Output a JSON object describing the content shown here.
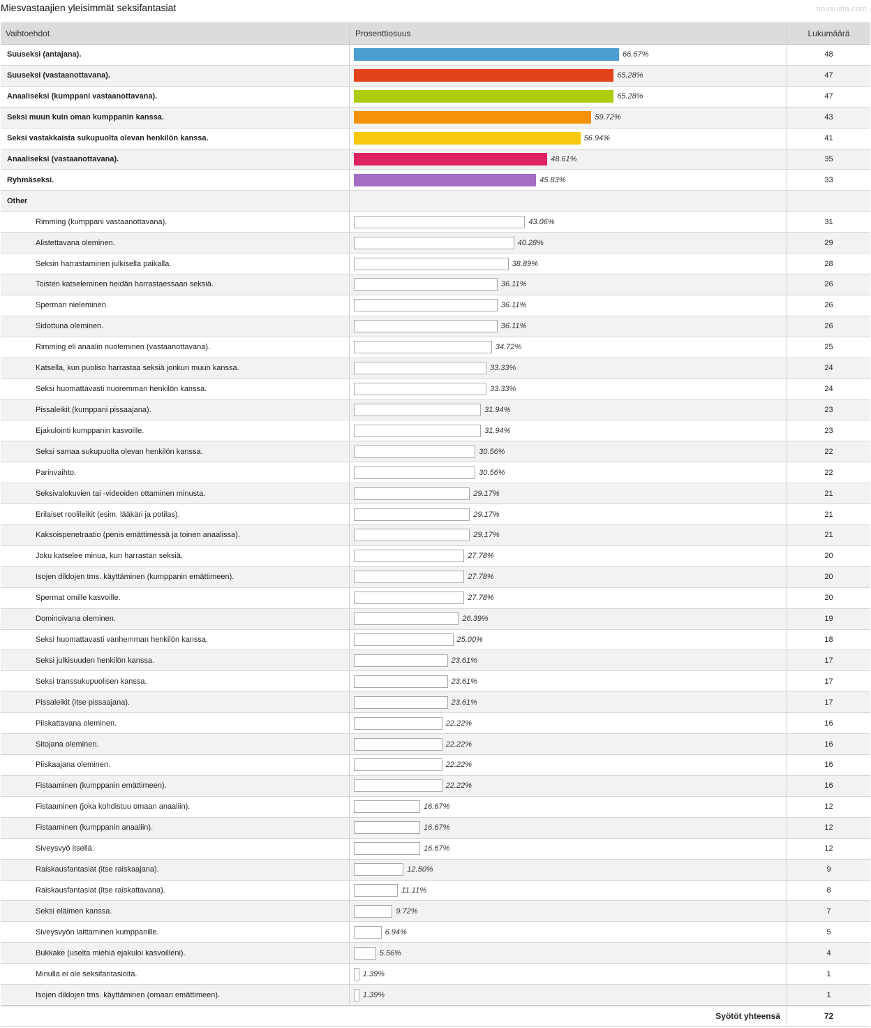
{
  "title": "Miesvastaajien yleisimmät seksifantasiat",
  "brand": "housuitta.com",
  "header": {
    "col1": "Vaihtoehdot",
    "col2": "Prosenttiosuus",
    "col3": "Lukumäärä"
  },
  "chart_data": {
    "type": "bar",
    "orientation": "horizontal",
    "title": "Miesvastaajien yleisimmät seksifantasiat",
    "xlabel": "Prosenttiosuus",
    "ylabel": "Vaihtoehdot",
    "xlim": [
      0,
      100
    ],
    "rows": [
      {
        "label": "Suuseksi (antajana).",
        "percent": "66.67%",
        "value": 66.67,
        "count": "48",
        "color": "#4a9fd0",
        "kind": "main"
      },
      {
        "label": "Suuseksi (vastaanottavana).",
        "percent": "65.28%",
        "value": 65.28,
        "count": "47",
        "color": "#e2411a",
        "kind": "main"
      },
      {
        "label": "Anaaliseksi (kumppani vastaanottavana).",
        "percent": "65.28%",
        "value": 65.28,
        "count": "47",
        "color": "#aecb0f",
        "kind": "main"
      },
      {
        "label": "Seksi muun kuin oman kumppanin kanssa.",
        "percent": "59.72%",
        "value": 59.72,
        "count": "43",
        "color": "#f59107",
        "kind": "main"
      },
      {
        "label": "Seksi vastakkaista sukupuolta olevan henkilön kanssa.",
        "percent": "56.94%",
        "value": 56.94,
        "count": "41",
        "color": "#f6c90e",
        "kind": "main"
      },
      {
        "label": "Anaaliseksi (vastaanottavana).",
        "percent": "48.61%",
        "value": 48.61,
        "count": "35",
        "color": "#de2264",
        "kind": "main"
      },
      {
        "label": "Ryhmäseksi.",
        "percent": "45.83%",
        "value": 45.83,
        "count": "33",
        "color": "#a56ec4",
        "kind": "main"
      },
      {
        "label": "Other",
        "kind": "group"
      },
      {
        "label": "Rimming (kumppani vastaanottavana).",
        "percent": "43.06%",
        "value": 43.06,
        "count": "31",
        "kind": "sub"
      },
      {
        "label": "Alistettavana oleminen.",
        "percent": "40.28%",
        "value": 40.28,
        "count": "29",
        "kind": "sub"
      },
      {
        "label": "Seksin harrastaminen julkisella paikalla.",
        "percent": "38.89%",
        "value": 38.89,
        "count": "28",
        "kind": "sub"
      },
      {
        "label": "Toisten katseleminen heidän harrastaessaan seksiä.",
        "percent": "36.11%",
        "value": 36.11,
        "count": "26",
        "kind": "sub"
      },
      {
        "label": "Sperman nieleminen.",
        "percent": "36.11%",
        "value": 36.11,
        "count": "26",
        "kind": "sub"
      },
      {
        "label": "Sidottuna oleminen.",
        "percent": "36.11%",
        "value": 36.11,
        "count": "26",
        "kind": "sub"
      },
      {
        "label": "Rimming eli anaalin nuoleminen (vastaanottavana).",
        "percent": "34.72%",
        "value": 34.72,
        "count": "25",
        "kind": "sub"
      },
      {
        "label": "Katsella, kun puoliso harrastaa seksiä jonkun muun kanssa.",
        "percent": "33.33%",
        "value": 33.33,
        "count": "24",
        "kind": "sub"
      },
      {
        "label": "Seksi huomattavasti nuoremman henkilön kanssa.",
        "percent": "33.33%",
        "value": 33.33,
        "count": "24",
        "kind": "sub"
      },
      {
        "label": "Pissaleikit (kumppani pissaajana).",
        "percent": "31.94%",
        "value": 31.94,
        "count": "23",
        "kind": "sub"
      },
      {
        "label": "Ejakulointi kumppanin kasvoille.",
        "percent": "31.94%",
        "value": 31.94,
        "count": "23",
        "kind": "sub"
      },
      {
        "label": "Seksi samaa sukupuolta olevan henkilön kanssa.",
        "percent": "30.56%",
        "value": 30.56,
        "count": "22",
        "kind": "sub"
      },
      {
        "label": "Parinvaihto.",
        "percent": "30.56%",
        "value": 30.56,
        "count": "22",
        "kind": "sub"
      },
      {
        "label": "Seksivalokuvien tai -videoiden ottaminen minusta.",
        "percent": "29.17%",
        "value": 29.17,
        "count": "21",
        "kind": "sub"
      },
      {
        "label": "Erilaiset roolileikit (esim. lääkäri ja potilas).",
        "percent": "29.17%",
        "value": 29.17,
        "count": "21",
        "kind": "sub"
      },
      {
        "label": "Kaksoispenetraatio (penis emättimessä ja toinen anaalissa).",
        "percent": "29.17%",
        "value": 29.17,
        "count": "21",
        "kind": "sub"
      },
      {
        "label": "Joku katselee minua, kun harrastan seksiä.",
        "percent": "27.78%",
        "value": 27.78,
        "count": "20",
        "kind": "sub"
      },
      {
        "label": "Isojen dildojen tms. käyttäminen (kumppanin emättimeen).",
        "percent": "27.78%",
        "value": 27.78,
        "count": "20",
        "kind": "sub"
      },
      {
        "label": "Spermat omille kasvoille.",
        "percent": "27.78%",
        "value": 27.78,
        "count": "20",
        "kind": "sub"
      },
      {
        "label": "Dominoivana oleminen.",
        "percent": "26.39%",
        "value": 26.39,
        "count": "19",
        "kind": "sub"
      },
      {
        "label": "Seksi huomattavasti vanhemman henkilön kanssa.",
        "percent": "25.00%",
        "value": 25.0,
        "count": "18",
        "kind": "sub"
      },
      {
        "label": "Seksi julkisuuden henkilön kanssa.",
        "percent": "23.61%",
        "value": 23.61,
        "count": "17",
        "kind": "sub"
      },
      {
        "label": "Seksi transsukupuolisen kanssa.",
        "percent": "23.61%",
        "value": 23.61,
        "count": "17",
        "kind": "sub"
      },
      {
        "label": "Pissaleikit (itse pissaajana).",
        "percent": "23.61%",
        "value": 23.61,
        "count": "17",
        "kind": "sub"
      },
      {
        "label": "Piiskattavana oleminen.",
        "percent": "22.22%",
        "value": 22.22,
        "count": "16",
        "kind": "sub"
      },
      {
        "label": "Sitojana oleminen.",
        "percent": "22.22%",
        "value": 22.22,
        "count": "16",
        "kind": "sub"
      },
      {
        "label": "Piiskaajana oleminen.",
        "percent": "22.22%",
        "value": 22.22,
        "count": "16",
        "kind": "sub"
      },
      {
        "label": "Fistaaminen (kumppanin emättimeen).",
        "percent": "22.22%",
        "value": 22.22,
        "count": "16",
        "kind": "sub"
      },
      {
        "label": "Fistaaminen (joka kohdistuu omaan anaaliin).",
        "percent": "16.67%",
        "value": 16.67,
        "count": "12",
        "kind": "sub"
      },
      {
        "label": "Fistaaminen (kumppanin anaaliin).",
        "percent": "16.67%",
        "value": 16.67,
        "count": "12",
        "kind": "sub"
      },
      {
        "label": "Siveysvyö itsellä.",
        "percent": "16.67%",
        "value": 16.67,
        "count": "12",
        "kind": "sub"
      },
      {
        "label": "Raiskausfantasiat (itse raiskaajana).",
        "percent": "12.50%",
        "value": 12.5,
        "count": "9",
        "kind": "sub"
      },
      {
        "label": "Raiskausfantasiat (itse raiskattavana).",
        "percent": "11.11%",
        "value": 11.11,
        "count": "8",
        "kind": "sub"
      },
      {
        "label": "Seksi eläimen kanssa.",
        "percent": "9.72%",
        "value": 9.72,
        "count": "7",
        "kind": "sub"
      },
      {
        "label": "Siveysvyön laittaminen kumppanille.",
        "percent": "6.94%",
        "value": 6.94,
        "count": "5",
        "kind": "sub"
      },
      {
        "label": "Bukkake (useita miehiä ejakuloi kasvoilleni).",
        "percent": "5.56%",
        "value": 5.56,
        "count": "4",
        "kind": "sub"
      },
      {
        "label": "Minulla ei ole seksifantasioita.",
        "percent": "1.39%",
        "value": 1.39,
        "count": "1",
        "kind": "sub"
      },
      {
        "label": "Isojen dildojen tms. käyttäminen (omaan emättimeen).",
        "percent": "1.39%",
        "value": 1.39,
        "count": "1",
        "kind": "sub"
      }
    ]
  },
  "total": {
    "label": "Syötöt yhteensä",
    "value": "72"
  }
}
